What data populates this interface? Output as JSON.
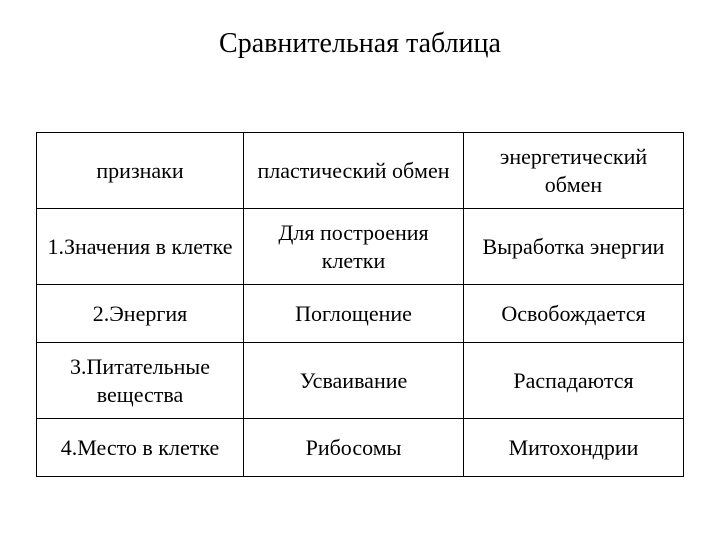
{
  "title": "Сравнительная таблица",
  "table": {
    "columns": [
      "признаки",
      "пластический обмен",
      "энергетический обмен"
    ],
    "rows": [
      [
        "1.Значения в клетке",
        "Для построения клетки",
        "Выработка энергии"
      ],
      [
        "2.Энергия",
        "Поглощение",
        "Освобождается"
      ],
      [
        "3.Питательные вещества",
        "Усваивание",
        "Распадаются"
      ],
      [
        "4.Место в клетке",
        "Рибосомы",
        "Митохондрии"
      ]
    ],
    "border_color": "#000000",
    "background_color": "#ffffff",
    "text_color": "#000000",
    "title_fontsize": 28,
    "cell_fontsize": 22,
    "font_family": "Times New Roman"
  }
}
